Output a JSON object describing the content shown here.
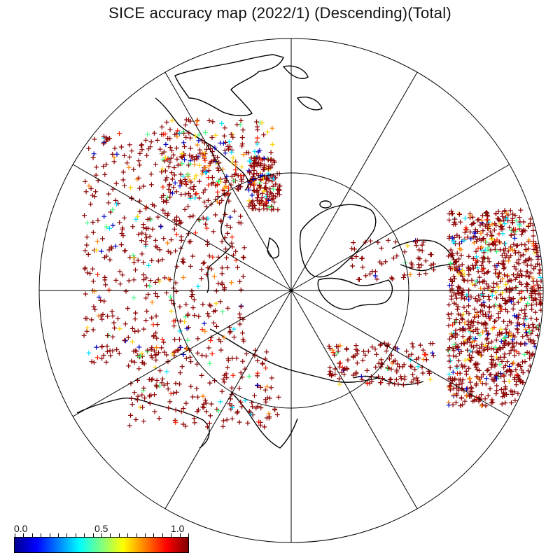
{
  "title": "SICE accuracy map (2022/1) (Descending)(Total)",
  "colorbar": {
    "min_label": "0.0",
    "mid_label": "0.5",
    "max_label": "1.0",
    "colors": [
      "#00008f",
      "#0000ff",
      "#0080ff",
      "#00ffff",
      "#80ff80",
      "#ffff00",
      "#ff8000",
      "#ff0000",
      "#800000"
    ]
  },
  "map": {
    "projection": "polar stereographic (north pole)",
    "graticule_meridian_step_deg": 30,
    "inner_circle_latitude_deg": 66.5
  },
  "marker_colors": {
    "dominant": "#8b0000",
    "others": [
      "#ff2000",
      "#ff8000",
      "#ffd000",
      "#00e0ff",
      "#40ff80",
      "#0000c0"
    ]
  }
}
